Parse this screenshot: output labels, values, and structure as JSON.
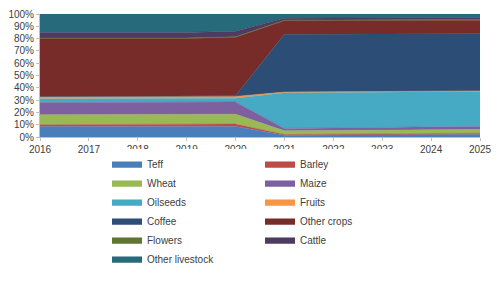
{
  "chart_data": {
    "type": "area",
    "stacked": true,
    "grid": false,
    "legend": "bottom",
    "x": [
      2016,
      2017,
      2018,
      2019,
      2020,
      2021,
      2022,
      2023,
      2024,
      2025
    ],
    "xlim": [
      2016,
      2025
    ],
    "xticks": [
      2016,
      2017,
      2018,
      2019,
      2020,
      2021,
      2022,
      2023,
      2024,
      2025
    ],
    "ylim": [
      0,
      100
    ],
    "yticks": [
      {
        "value": 0,
        "label": "0%"
      },
      {
        "value": 10,
        "label": "10%"
      },
      {
        "value": 20,
        "label": "20%"
      },
      {
        "value": 30,
        "label": "30%"
      },
      {
        "value": 40,
        "label": "40%"
      },
      {
        "value": 50,
        "label": "50%"
      },
      {
        "value": 60,
        "label": "60%"
      },
      {
        "value": 70,
        "label": "70%"
      },
      {
        "value": 80,
        "label": "80%"
      },
      {
        "value": 90,
        "label": "90%"
      },
      {
        "value": 100,
        "label": "100%"
      }
    ],
    "series": [
      {
        "name": "Teff",
        "color": "#4a7ebb",
        "values": [
          8.5,
          8.5,
          8.5,
          8.5,
          8.5,
          1.5,
          1.5,
          1.8,
          2,
          2
        ]
      },
      {
        "name": "Barley",
        "color": "#be4b48",
        "values": [
          1.5,
          1.5,
          1.5,
          1.5,
          2,
          0.5,
          0.5,
          0.7,
          0.8,
          1
        ]
      },
      {
        "name": "Wheat",
        "color": "#98b954",
        "values": [
          8,
          8,
          8,
          8,
          8,
          3,
          3,
          3,
          3,
          3
        ]
      },
      {
        "name": "Maize",
        "color": "#7d60a0",
        "values": [
          10,
          10,
          10,
          10,
          10,
          2,
          2.2,
          2.3,
          2.5,
          2.5
        ]
      },
      {
        "name": "Oilseeds",
        "color": "#46aac5",
        "values": [
          3,
          3,
          3,
          3,
          3,
          29,
          29,
          28.7,
          28.7,
          28.5
        ]
      },
      {
        "name": "Fruits",
        "color": "#f79646",
        "values": [
          1.5,
          1.5,
          1.5,
          1.5,
          1.5,
          0.5,
          0.5,
          0.5,
          0.5,
          0.5
        ]
      },
      {
        "name": "Coffee",
        "color": "#2c4d75",
        "values": [
          0.5,
          0.5,
          0.5,
          0.5,
          0.5,
          47,
          47,
          47,
          46.5,
          46.5
        ]
      },
      {
        "name": "Other crops",
        "color": "#772c2a",
        "values": [
          47,
          47,
          47,
          47,
          47.5,
          11,
          11,
          11,
          11,
          11
        ]
      },
      {
        "name": "Flowers",
        "color": "#5f7530",
        "values": [
          0.5,
          0.5,
          0.5,
          0.5,
          0.5,
          0.5,
          0.5,
          0.5,
          0.5,
          0.5
        ]
      },
      {
        "name": "Cattle",
        "color": "#4d3b62",
        "values": [
          4.5,
          4.5,
          4.5,
          4.5,
          4.5,
          1.5,
          1.5,
          1.5,
          1.5,
          1.5
        ]
      },
      {
        "name": "Other livestock",
        "color": "#276a7c",
        "values": [
          15,
          15,
          15,
          15,
          14,
          3.5,
          3.3,
          3,
          3,
          3
        ]
      }
    ]
  }
}
